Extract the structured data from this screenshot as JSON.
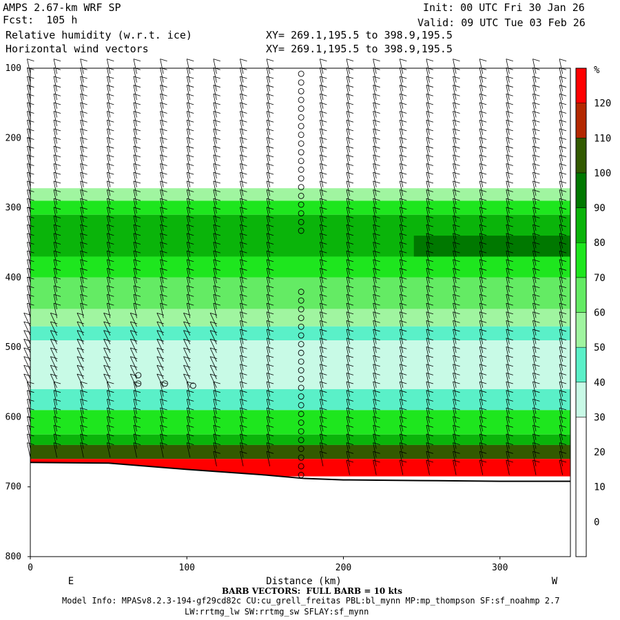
{
  "header": {
    "model": "AMPS 2.67-km WRF SP",
    "fcst": "Fcst:  105 h",
    "field1": "Relative humidity (w.r.t. ice)",
    "field2": "Horizontal wind vectors",
    "init": "Init: 00 UTC Fri 30 Jan 26",
    "valid": "Valid: 09 UTC Tue 03 Feb 26",
    "xy1": "XY= 269.1,195.5 to 398.9,195.5",
    "xy2": "XY= 269.1,195.5 to 398.9,195.5"
  },
  "footer": {
    "barb_note": "BARB VECTORS:  FULL BARB = 10 kts",
    "model_info": "Model Info: MPASv8.2.3-194-gf29cd82c CU:cu_grell_freitas PBL:bl_mynn MP:mp_thompson SF:sf_noahmp 2.7",
    "model_info2": "LW:rrtmg_lw SW:rrtmg_sw SFLAY:sf_mynn"
  },
  "chart_data": {
    "type": "heatmap",
    "xlabel": "Distance (km)",
    "x_endpoints": {
      "left": "E",
      "right": "W"
    },
    "xlim": [
      0,
      345
    ],
    "xticks": [
      0,
      100,
      200,
      300
    ],
    "ylim": [
      800,
      100
    ],
    "yticks": [
      100,
      200,
      300,
      400,
      500,
      600,
      700,
      800
    ],
    "colorbar": {
      "unit": "%",
      "ticks": [
        0,
        10,
        20,
        30,
        40,
        50,
        60,
        70,
        80,
        90,
        100,
        110,
        120
      ],
      "levels": [
        {
          "min": -10,
          "max": 30,
          "color": "#ffffff"
        },
        {
          "min": 30,
          "max": 40,
          "color": "#c8fae6"
        },
        {
          "min": 40,
          "max": 50,
          "color": "#5af0c8"
        },
        {
          "min": 50,
          "max": 60,
          "color": "#a0f5a0"
        },
        {
          "min": 60,
          "max": 70,
          "color": "#64eb64"
        },
        {
          "min": 70,
          "max": 80,
          "color": "#1ee61e"
        },
        {
          "min": 80,
          "max": 90,
          "color": "#0ab40a"
        },
        {
          "min": 90,
          "max": 100,
          "color": "#007800"
        },
        {
          "min": 100,
          "max": 110,
          "color": "#325a00"
        },
        {
          "min": 110,
          "max": 120,
          "color": "#b42800"
        },
        {
          "min": 120,
          "max": 130,
          "color": "#ff0000"
        }
      ]
    },
    "rh_layers": [
      {
        "p_top": 272,
        "p_bottom": 290,
        "rh": 55
      },
      {
        "p_top": 290,
        "p_bottom": 310,
        "rh": 75
      },
      {
        "p_top": 310,
        "p_bottom": 370,
        "rh": 85
      },
      {
        "p_top": 340,
        "p_bottom": 385,
        "rh": 95,
        "x_start": 245
      },
      {
        "p_top": 370,
        "p_bottom": 400,
        "rh": 75
      },
      {
        "p_top": 400,
        "p_bottom": 445,
        "rh": 65
      },
      {
        "p_top": 445,
        "p_bottom": 470,
        "rh": 55
      },
      {
        "p_top": 470,
        "p_bottom": 490,
        "rh": 45
      },
      {
        "p_top": 490,
        "p_bottom": 560,
        "rh": 35
      },
      {
        "p_top": 560,
        "p_bottom": 590,
        "rh": 45
      },
      {
        "p_top": 590,
        "p_bottom": 625,
        "rh": 75
      },
      {
        "p_top": 625,
        "p_bottom": 640,
        "rh": 85
      },
      {
        "p_top": 640,
        "p_bottom": 660,
        "rh": 105
      },
      {
        "p_top": 660,
        "p_bottom": 685,
        "rh": 125
      }
    ],
    "terrain_surface": [
      {
        "x": 0,
        "p": 665
      },
      {
        "x": 50,
        "p": 666
      },
      {
        "x": 100,
        "p": 675
      },
      {
        "x": 150,
        "p": 683
      },
      {
        "x": 175,
        "p": 688
      },
      {
        "x": 200,
        "p": 690
      },
      {
        "x": 250,
        "p": 691
      },
      {
        "x": 300,
        "p": 692
      },
      {
        "x": 345,
        "p": 692
      }
    ],
    "calm_column_x": 173,
    "calm_points_left": [
      {
        "x": 69,
        "p": 540
      },
      {
        "x": 69,
        "p": 552
      },
      {
        "x": 86,
        "p": 552
      },
      {
        "x": 104,
        "p": 555
      }
    ]
  }
}
